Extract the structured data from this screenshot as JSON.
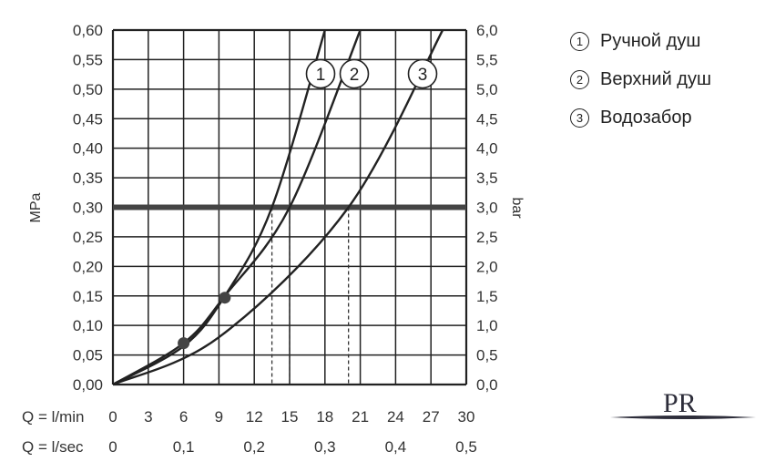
{
  "chart_data": {
    "type": "line",
    "title": "",
    "ylabel_left": "MPa",
    "ylabel_right": "bar",
    "x_axis_labels": [
      "Q = l/min",
      "Q = l/sec"
    ],
    "xlim_lmin": [
      0,
      30
    ],
    "ylim_mpa": [
      0,
      0.6
    ],
    "ylim_bar": [
      0,
      6
    ],
    "x_ticks_lmin": [
      "0",
      "3",
      "6",
      "9",
      "12",
      "15",
      "18",
      "21",
      "24",
      "27",
      "30"
    ],
    "x_ticks_lsec": [
      "0",
      "0,1",
      "0,2",
      "0,3",
      "0,4",
      "0,5"
    ],
    "y_ticks_mpa": [
      "0,00",
      "0,05",
      "0,10",
      "0,15",
      "0,20",
      "0,25",
      "0,30",
      "0,35",
      "0,40",
      "0,45",
      "0,50",
      "0,55",
      "0,60"
    ],
    "y_ticks_bar": [
      "0,0",
      "0,5",
      "1,0",
      "1,5",
      "2,0",
      "2,5",
      "3,0",
      "3,5",
      "4,0",
      "4,5",
      "5,0",
      "5,5",
      "6,0"
    ],
    "grid": true,
    "reference_line_mpa": 0.3,
    "series": [
      {
        "name": "Ручной душ",
        "marker": "1",
        "x": [
          0,
          6,
          9.5,
          13.5,
          18
        ],
        "y": [
          0,
          0.065,
          0.15,
          0.3,
          0.6
        ]
      },
      {
        "name": "Верхний душ",
        "marker": "2",
        "x": [
          0,
          6,
          9.5,
          15,
          21
        ],
        "y": [
          0,
          0.07,
          0.15,
          0.3,
          0.6
        ]
      },
      {
        "name": "Водозабор",
        "marker": "3",
        "x": [
          0,
          9,
          20,
          28
        ],
        "y": [
          0,
          0.08,
          0.3,
          0.6
        ]
      }
    ],
    "markers": [
      {
        "x": 6,
        "y": 0.07
      },
      {
        "x": 9.5,
        "y": 0.147
      }
    ],
    "dashed_drops_x": [
      13.5,
      15,
      20
    ],
    "colors": {
      "lines": "#222222",
      "grid": "#222222",
      "reference": "#444444",
      "markers": "#444444"
    }
  },
  "legend": [
    {
      "num": "①",
      "label": "Ручной душ"
    },
    {
      "num": "②",
      "label": "Верхний душ"
    },
    {
      "num": "③",
      "label": "Водозабор"
    }
  ],
  "logo": {
    "text": "PR"
  }
}
